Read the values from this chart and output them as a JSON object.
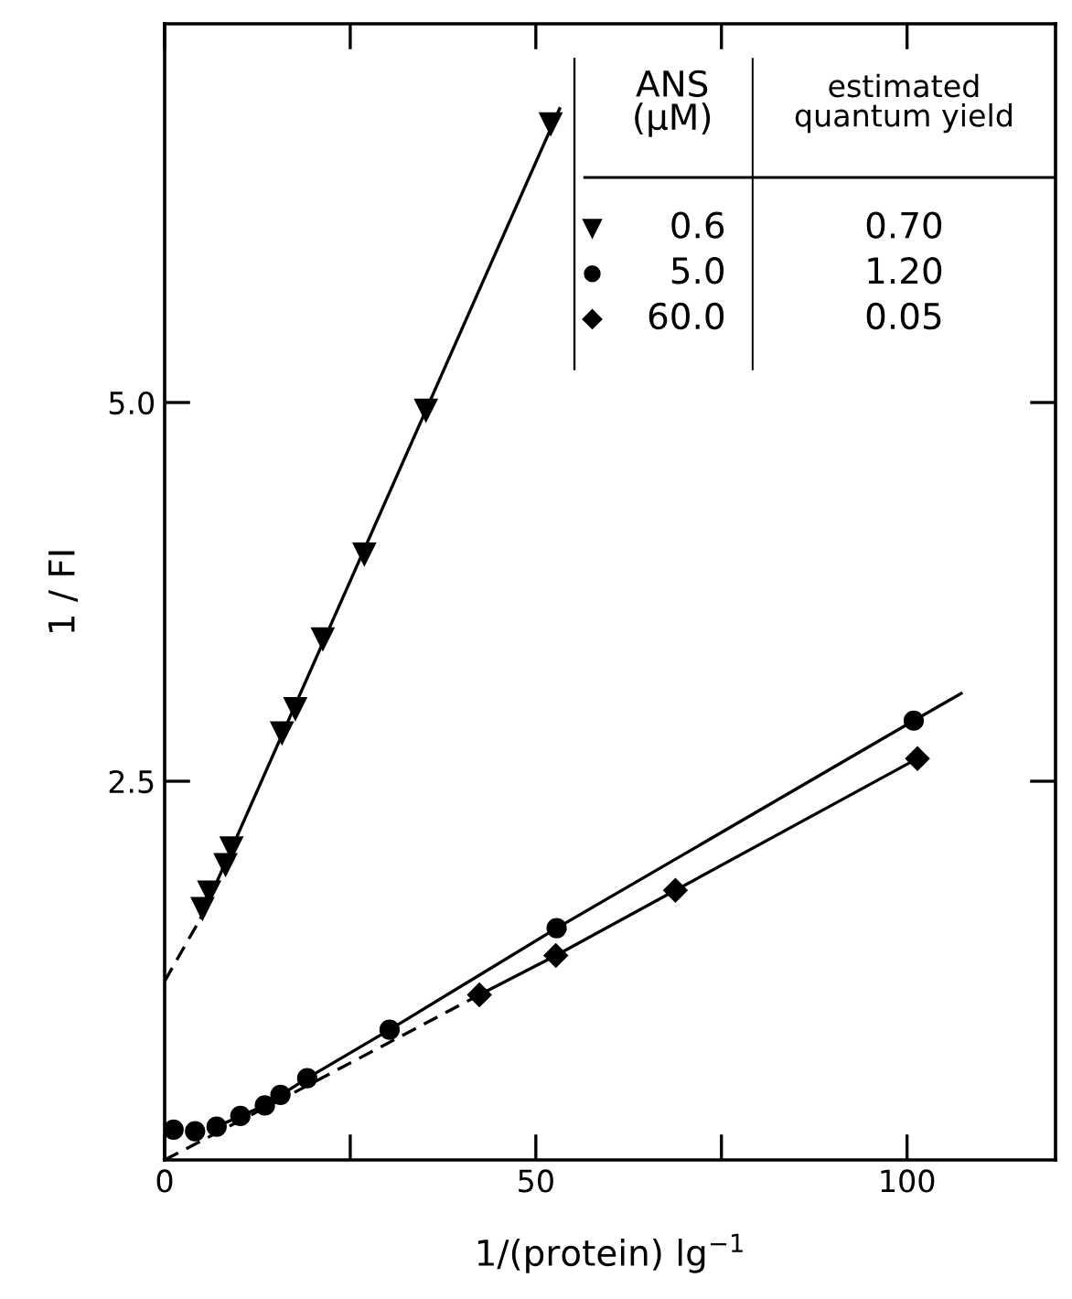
{
  "chart_data": {
    "type": "scatter",
    "xlabel": "1/(protein) lg$^{−1}$",
    "ylabel": "1 / FI",
    "legend_title": "ANS\n(μM)",
    "legend": "top right",
    "grid": false,
    "xlim": [
      0,
      120
    ],
    "ylim": [
      0,
      7.5
    ],
    "xticks": [
      0,
      {
        "value": 25,
        "label": null
      },
      50,
      {
        "value": 75,
        "label": null
      },
      100
    ],
    "yticks": [
      {
        "value": 2.5,
        "label": "2.5"
      },
      {
        "value": 5,
        "label": "5.0"
      }
    ],
    "series": [
      {
        "name": "0.6",
        "color": "#000000",
        "marker": "triangle",
        "x": [
          5.1,
          6.0,
          8.2,
          9.0,
          15.8,
          17.6,
          21.3,
          26.9,
          35.2,
          52.0
        ],
        "values": [
          1.66,
          1.77,
          1.95,
          2.06,
          2.82,
          2.98,
          3.44,
          4.0,
          4.95,
          6.84
        ]
      },
      {
        "name": "5.0",
        "color": "#000000",
        "marker": "circle",
        "x": [
          1.2,
          4.1,
          7.0,
          10.2,
          13.5,
          15.6,
          19.2,
          30.3,
          52.8,
          100.9
        ],
        "values": [
          0.2,
          0.19,
          0.22,
          0.29,
          0.36,
          0.43,
          0.54,
          0.86,
          1.53,
          2.9
        ]
      },
      {
        "name": "60.0",
        "color": "#000000",
        "marker": "diamond",
        "x": [
          42.4,
          52.7,
          68.8,
          101.4
        ],
        "values": [
          1.09,
          1.35,
          1.78,
          2.65
        ]
      },
      {
        "type": "line",
        "color": "#000000",
        "line_style": "dashed",
        "x": [
          0,
          4.9
        ],
        "values": [
          1.18,
          1.6
        ]
      },
      {
        "type": "line",
        "color": "#000000",
        "line_style": "solid",
        "x": [
          4.9,
          53.2
        ],
        "values": [
          1.6,
          6.94
        ]
      },
      {
        "type": "line",
        "color": "#000000",
        "line_style": "solid",
        "x": [
          7.0,
          13.5,
          19.2,
          30.3,
          52.8,
          100.9,
          107.3
        ],
        "values": [
          0.22,
          0.36,
          0.54,
          0.86,
          1.53,
          2.9,
          3.08
        ]
      },
      {
        "type": "line",
        "color": "#000000",
        "line_style": "dashed",
        "x": [
          0,
          19.2,
          42.4
        ],
        "values": [
          0,
          0.49,
          1.09
        ]
      },
      {
        "type": "line",
        "color": "#000000",
        "line_style": "solid",
        "x": [
          42.4,
          52.7,
          68.8,
          101.4
        ],
        "values": [
          1.09,
          1.35,
          1.78,
          2.65
        ]
      }
    ],
    "annotations": [
      "estimated\nquantum yield",
      "0.70",
      "1.20",
      "0.05"
    ]
  }
}
